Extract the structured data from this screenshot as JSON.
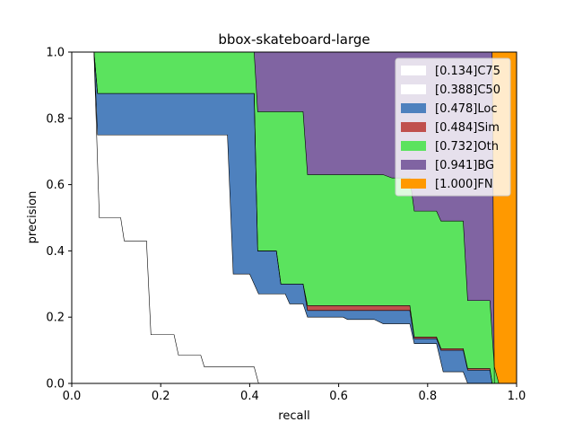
{
  "chart_data": {
    "type": "area",
    "title": "bbox-skateboard-large",
    "xlabel": "recall",
    "ylabel": "precision",
    "xlim": [
      0,
      1
    ],
    "ylim": [
      0,
      1
    ],
    "xticks": [
      "0.0",
      "0.2",
      "0.4",
      "0.6",
      "0.8",
      "1.0"
    ],
    "yticks": [
      "0.0",
      "0.2",
      "0.4",
      "0.6",
      "0.8",
      "1.0"
    ],
    "grid": false,
    "legend_position": "top-right",
    "series": [
      {
        "name": "[0.134]C75",
        "color": "#ffffff",
        "points": [
          [
            0,
            1.0
          ],
          [
            0.05,
            1.0
          ],
          [
            0.062,
            0.5
          ],
          [
            0.11,
            0.5
          ],
          [
            0.118,
            0.43
          ],
          [
            0.168,
            0.43
          ],
          [
            0.178,
            0.147
          ],
          [
            0.23,
            0.147
          ],
          [
            0.24,
            0.085
          ],
          [
            0.29,
            0.085
          ],
          [
            0.298,
            0.05
          ],
          [
            0.41,
            0.05
          ],
          [
            0.42,
            0.0
          ],
          [
            1.0,
            0.0
          ]
        ]
      },
      {
        "name": "[0.388]C50",
        "color": "#ffffff",
        "points": [
          [
            0,
            1.0
          ],
          [
            0.05,
            1.0
          ],
          [
            0.058,
            0.75
          ],
          [
            0.35,
            0.75
          ],
          [
            0.363,
            0.33
          ],
          [
            0.4,
            0.33
          ],
          [
            0.42,
            0.27
          ],
          [
            0.48,
            0.27
          ],
          [
            0.49,
            0.24
          ],
          [
            0.52,
            0.24
          ],
          [
            0.53,
            0.2
          ],
          [
            0.61,
            0.2
          ],
          [
            0.62,
            0.193
          ],
          [
            0.68,
            0.193
          ],
          [
            0.7,
            0.18
          ],
          [
            0.76,
            0.18
          ],
          [
            0.77,
            0.12
          ],
          [
            0.82,
            0.12
          ],
          [
            0.835,
            0.035
          ],
          [
            0.88,
            0.035
          ],
          [
            0.89,
            0.0
          ],
          [
            1.0,
            0.0
          ]
        ]
      },
      {
        "name": "[0.478]Loc",
        "color": "#4e81be",
        "points": [
          [
            0,
            1.0
          ],
          [
            0.05,
            1.0
          ],
          [
            0.058,
            0.875
          ],
          [
            0.41,
            0.875
          ],
          [
            0.418,
            0.4
          ],
          [
            0.46,
            0.4
          ],
          [
            0.47,
            0.3
          ],
          [
            0.52,
            0.3
          ],
          [
            0.53,
            0.22
          ],
          [
            0.61,
            0.22
          ],
          [
            0.62,
            0.22
          ],
          [
            0.76,
            0.22
          ],
          [
            0.77,
            0.135
          ],
          [
            0.82,
            0.135
          ],
          [
            0.83,
            0.1
          ],
          [
            0.88,
            0.1
          ],
          [
            0.89,
            0.04
          ],
          [
            0.94,
            0.04
          ],
          [
            0.945,
            0.0
          ],
          [
            1.0,
            0.0
          ]
        ]
      },
      {
        "name": "[0.484]Sim",
        "color": "#c0504d",
        "points": [
          [
            0,
            1.0
          ],
          [
            0.05,
            1.0
          ],
          [
            0.058,
            0.875
          ],
          [
            0.41,
            0.875
          ],
          [
            0.418,
            0.4
          ],
          [
            0.46,
            0.4
          ],
          [
            0.47,
            0.3
          ],
          [
            0.52,
            0.3
          ],
          [
            0.53,
            0.235
          ],
          [
            0.61,
            0.235
          ],
          [
            0.62,
            0.235
          ],
          [
            0.76,
            0.235
          ],
          [
            0.77,
            0.14
          ],
          [
            0.82,
            0.14
          ],
          [
            0.83,
            0.105
          ],
          [
            0.88,
            0.105
          ],
          [
            0.89,
            0.045
          ],
          [
            0.94,
            0.045
          ],
          [
            0.945,
            0.0
          ],
          [
            1.0,
            0.0
          ]
        ]
      },
      {
        "name": "[0.732]Oth",
        "color": "#5be35e",
        "points": [
          [
            0,
            1.0
          ],
          [
            0.41,
            1.0
          ],
          [
            0.418,
            0.82
          ],
          [
            0.52,
            0.82
          ],
          [
            0.53,
            0.63
          ],
          [
            0.7,
            0.63
          ],
          [
            0.72,
            0.62
          ],
          [
            0.76,
            0.62
          ],
          [
            0.77,
            0.52
          ],
          [
            0.82,
            0.52
          ],
          [
            0.83,
            0.49
          ],
          [
            0.88,
            0.49
          ],
          [
            0.89,
            0.25
          ],
          [
            0.94,
            0.25
          ],
          [
            0.95,
            0.05
          ],
          [
            0.96,
            0.0
          ],
          [
            1.0,
            0.0
          ]
        ]
      },
      {
        "name": "[0.941]BG",
        "color": "#8064a2",
        "points": [
          [
            0,
            1.0
          ],
          [
            0.945,
            1.0
          ],
          [
            0.95,
            0.0
          ],
          [
            1.0,
            0.0
          ]
        ]
      },
      {
        "name": "[1.000]FN",
        "color": "#ff9900",
        "points": [
          [
            0,
            1.0
          ],
          [
            1.0,
            1.0
          ],
          [
            1.0,
            0.0
          ]
        ]
      }
    ]
  }
}
